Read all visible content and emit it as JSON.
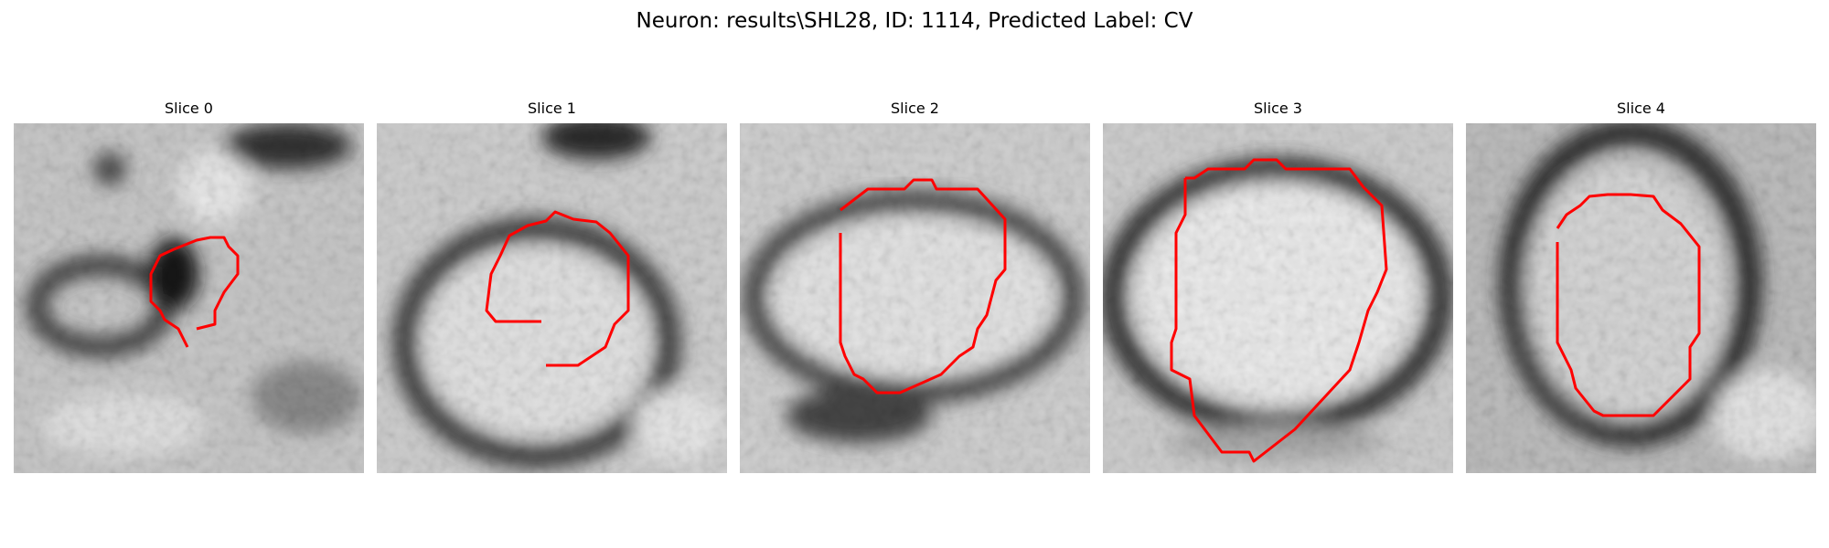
{
  "title": "Neuron: results\\SHL28, ID: 1114, Predicted Label: CV",
  "outline_color": "#ff0000",
  "panels": [
    {
      "label": "Slice 0"
    },
    {
      "label": "Slice 1"
    },
    {
      "label": "Slice 2"
    },
    {
      "label": "Slice 3"
    },
    {
      "label": "Slice 4"
    }
  ]
}
